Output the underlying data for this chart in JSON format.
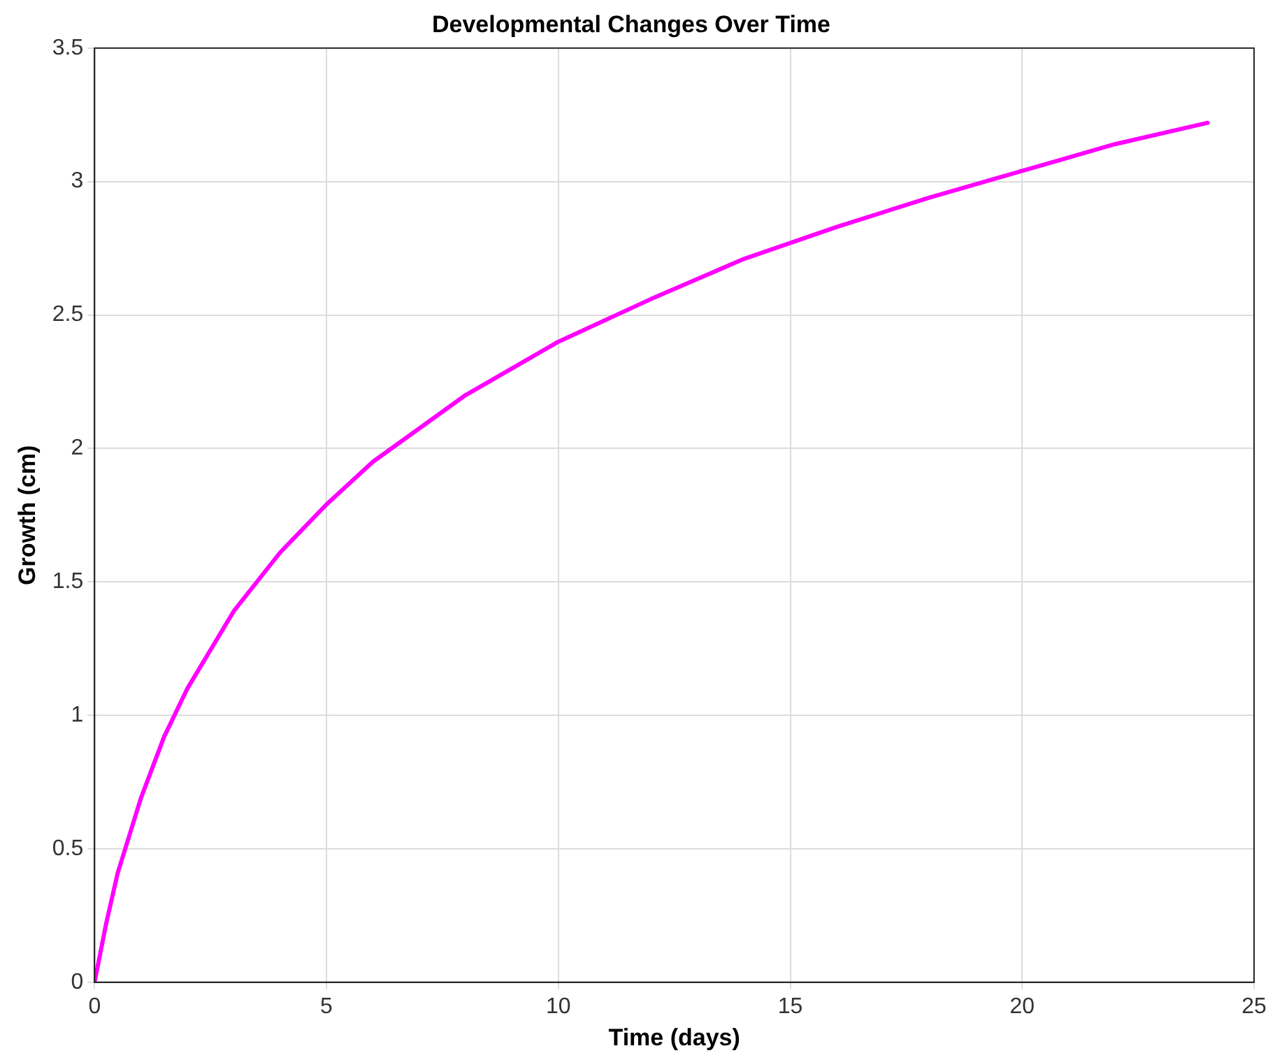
{
  "chart_data": {
    "type": "line",
    "title": "Developmental Changes Over Time",
    "xlabel": "Time (days)",
    "ylabel": "Growth (cm)",
    "x": [
      0,
      0.25,
      0.5,
      1,
      1.5,
      2,
      3,
      4,
      5,
      6,
      8,
      10,
      12,
      14,
      16,
      18,
      20,
      22,
      24
    ],
    "series": [
      {
        "color": "#ff00ff",
        "values": [
          0,
          0.22,
          0.41,
          0.69,
          0.92,
          1.1,
          1.39,
          1.61,
          1.79,
          1.95,
          2.2,
          2.4,
          2.56,
          2.71,
          2.83,
          2.94,
          3.04,
          3.14,
          3.22
        ]
      }
    ],
    "xlim": [
      0,
      25
    ],
    "xticks": [
      0,
      5,
      10,
      15,
      20,
      25
    ],
    "ylim": [
      0,
      3.5
    ],
    "yticks": [
      0,
      0.5,
      1,
      1.5,
      2,
      2.5,
      3,
      3.5
    ],
    "grid": true,
    "legend": false,
    "marker": "none",
    "line_style": "solid"
  }
}
